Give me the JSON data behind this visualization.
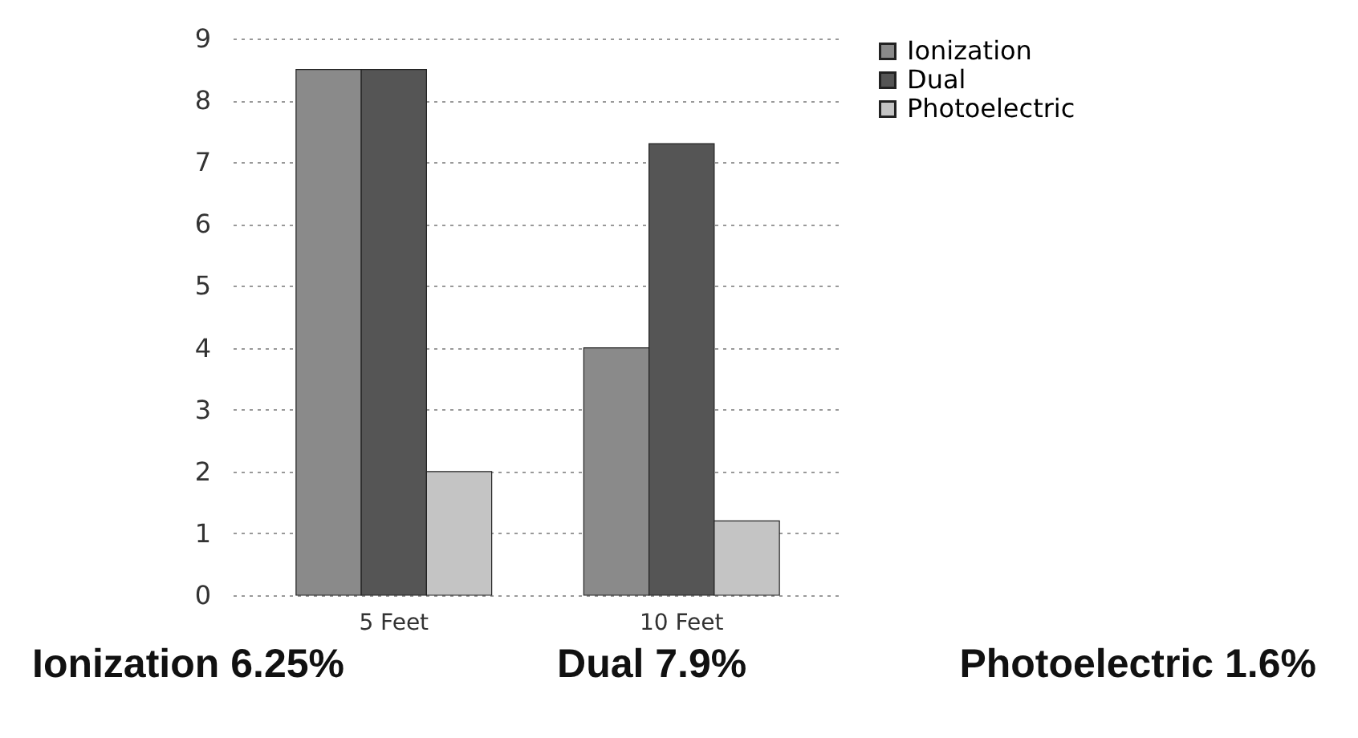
{
  "chart_data": {
    "type": "bar",
    "categories": [
      "5 Feet",
      "10 Feet"
    ],
    "series": [
      {
        "name": "Ionization",
        "color": "#8a8a8a",
        "values": [
          8.5,
          4
        ]
      },
      {
        "name": "Dual",
        "color": "#555555",
        "values": [
          8.5,
          7.3
        ]
      },
      {
        "name": "Photoelectric",
        "color": "#c4c4c4",
        "values": [
          2,
          1.2
        ]
      }
    ],
    "ylim": [
      0,
      9
    ],
    "yticks": [
      0,
      1,
      2,
      3,
      4,
      5,
      6,
      7,
      8,
      9
    ],
    "grid": "y",
    "legend": "right",
    "annotations": [
      "Ionization 6.25%",
      "Dual 7.9%",
      "Photoelectric 1.6%"
    ]
  }
}
